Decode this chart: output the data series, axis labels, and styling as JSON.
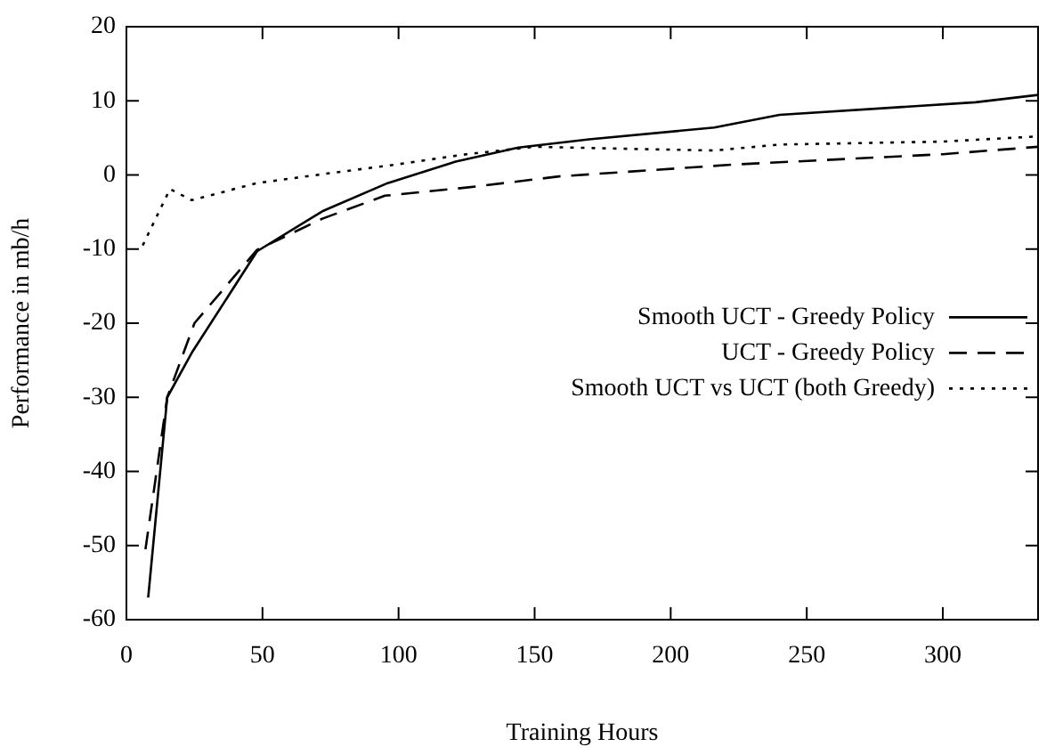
{
  "chart_data": {
    "type": "line",
    "xlabel": "Training Hours",
    "ylabel": "Performance in mb/h",
    "xlim": [
      0,
      335
    ],
    "xticks": [
      0,
      50,
      100,
      150,
      200,
      250,
      300
    ],
    "ylim": [
      -60,
      20
    ],
    "yticks": [
      -60,
      -50,
      -40,
      -30,
      -20,
      -10,
      0,
      10,
      20
    ],
    "grid": false,
    "legend": "right",
    "marker": "none",
    "series": [
      {
        "name": "Smooth UCT - Greedy Policy",
        "color": "#000000",
        "line_style": "solid",
        "x": [
          8,
          15,
          24,
          48,
          72,
          96,
          121,
          144,
          170,
          216,
          240,
          312,
          335
        ],
        "values": [
          -57,
          -30,
          -24,
          -10.3,
          -4.9,
          -1.1,
          1.8,
          3.7,
          4.8,
          6.4,
          8.1,
          9.8,
          10.8
        ]
      },
      {
        "name": "UCT - Greedy Policy",
        "color": "#000000",
        "line_style": "dashed",
        "x": [
          7,
          15,
          25,
          48,
          72,
          95,
          125,
          159,
          223,
          300,
          335
        ],
        "values": [
          -50.5,
          -30,
          -20,
          -10.1,
          -5.9,
          -2.8,
          -1.7,
          -0.2,
          1.4,
          2.8,
          3.8
        ]
      },
      {
        "name": "Smooth UCT vs UCT (both Greedy)",
        "color": "#000000",
        "line_style": "dotted",
        "x": [
          6,
          16,
          24,
          48,
          74,
          99,
          125,
          150,
          188,
          216,
          240,
          300,
          335
        ],
        "values": [
          -9.5,
          -1.9,
          -3.4,
          -1.1,
          0.2,
          1.4,
          2.8,
          3.8,
          3.5,
          3.3,
          4.1,
          4.5,
          5.2
        ]
      }
    ]
  }
}
